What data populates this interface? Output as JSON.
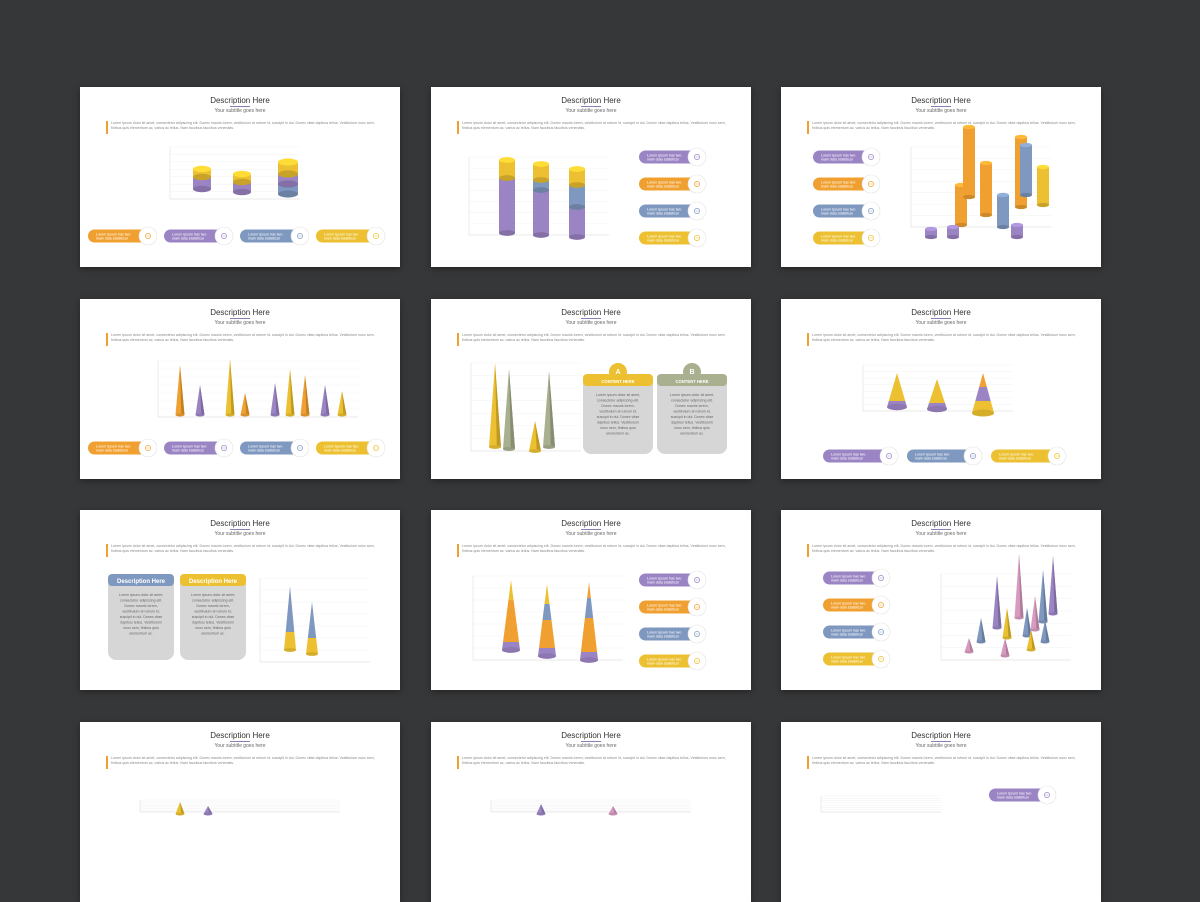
{
  "slide": {
    "title": "Description Here",
    "subtitle": "Your subtitle goes here",
    "body": "Lorem ipsum dolor sit amet, consectetur adipiscing elit. Donec mauris lorem, vestibulum at rutrum id, suscipit in dui. Donec vitae dapibus tellus. Vestibulum nunc sem, finibus quis elementum ac, varius ac tellus. Nam faucibus faucibus venenatis.",
    "pill_text": "Lorem Ipsum has two main data statistical",
    "card_text": "Lorem ipsum dolor sit amet, consectetur adipiscing elit. Donec mauris lorem, vestibulum at rutrum id, suscipit in dui. Donec vitae dapibus tellus. Vestibulum nunc sem, finibus quis elementum ac.",
    "card_a_letter": "A",
    "card_b_letter": "B",
    "card_header": "CONTENT HERE",
    "card_desc_header": "Description Here"
  },
  "colors": {
    "background": "#363738",
    "purple": "#9b84c4",
    "orange": "#f0a030",
    "blue": "#7f98bf",
    "yellow": "#ecc030",
    "green": "#a8b08f",
    "pink": "#d89bc0",
    "gray_card": "#d6d6d6"
  },
  "slides": [
    {
      "id": 1,
      "chart": "stacked-cylinders-short",
      "pills": "bottom-row"
    },
    {
      "id": 2,
      "chart": "stacked-cylinders-tall",
      "pills": "right-column"
    },
    {
      "id": 3,
      "chart": "3d-cylinder-grid",
      "pills": "left-column"
    },
    {
      "id": 4,
      "chart": "cone-clusters",
      "pills": "bottom-row"
    },
    {
      "id": 5,
      "chart": "two-cones",
      "cards": "letter-a-b"
    },
    {
      "id": 6,
      "chart": "stacked-cones-short",
      "pills": "bottom-row-three"
    },
    {
      "id": 7,
      "chart": "blue-yellow-cones",
      "cards": "description-here"
    },
    {
      "id": 8,
      "chart": "stacked-cones-tall",
      "pills": "right-column"
    },
    {
      "id": 9,
      "chart": "3d-cone-field",
      "pills": "left-column"
    },
    {
      "id": 10,
      "chart": "partial"
    },
    {
      "id": 11,
      "chart": "partial"
    },
    {
      "id": 12,
      "chart": "partial"
    }
  ]
}
